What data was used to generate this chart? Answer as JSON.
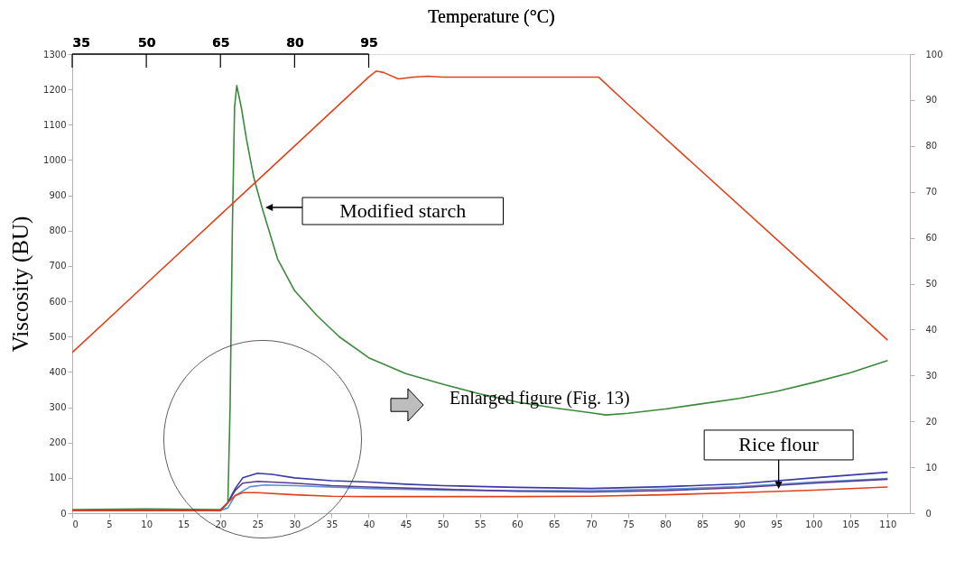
{
  "chart_data": {
    "type": "line",
    "ylabel": "Viscosity (BU)",
    "x2label": "Temperature (°C)",
    "xlim": [
      0,
      113
    ],
    "xticks": [
      0,
      5,
      10,
      15,
      20,
      25,
      30,
      35,
      40,
      45,
      50,
      55,
      60,
      65,
      70,
      75,
      80,
      85,
      90,
      95,
      100,
      105,
      110
    ],
    "ylim": [
      0,
      1300
    ],
    "yticks": [
      0,
      100,
      200,
      300,
      400,
      500,
      600,
      700,
      800,
      900,
      1000,
      1100,
      1200,
      1300
    ],
    "y2lim": [
      0,
      100
    ],
    "y2ticks": [
      0,
      10,
      20,
      30,
      40,
      50,
      60,
      70,
      80,
      90,
      100
    ],
    "x2lim": [
      35,
      204.5
    ],
    "x2ticks": [
      35,
      50,
      65,
      80,
      95
    ],
    "grid": false,
    "series": [
      {
        "color": "#e0421c",
        "axis": "y2",
        "x": [
          0,
          10,
          20,
          30,
          40,
          41,
          42,
          44,
          46,
          48,
          50,
          71,
          75,
          110
        ],
        "values": [
          35,
          50,
          65,
          80,
          95,
          96.3,
          96,
          94.6,
          95,
          95.2,
          95,
          95,
          89,
          37.7
        ]
      },
      {
        "color": "#3b8a3b",
        "x": [
          0,
          10,
          20,
          21,
          21.3,
          21.6,
          21.9,
          22.2,
          22.8,
          23.5,
          24.5,
          25.6,
          27.7,
          30,
          33,
          36,
          40,
          45,
          50,
          55,
          60,
          65,
          70,
          72,
          75,
          80,
          85,
          90,
          95,
          100,
          105,
          110
        ],
        "values": [
          10,
          12,
          10,
          30,
          300,
          800,
          1150,
          1211,
          1150,
          1060,
          950,
          866,
          720,
          630,
          560,
          500,
          440,
          395,
          365,
          338,
          315,
          298,
          284,
          278,
          283,
          295,
          310,
          325,
          345,
          370,
          398,
          432
        ]
      },
      {
        "color": "#5b8fd6",
        "x": [
          0,
          20,
          21,
          22,
          24,
          26,
          30,
          40,
          50,
          60,
          70,
          80,
          90,
          100,
          110
        ],
        "values": [
          8,
          8,
          15,
          50,
          75,
          80,
          78,
          70,
          65,
          64,
          64,
          68,
          75,
          88,
          98
        ]
      },
      {
        "color": "#5a3a8c",
        "x": [
          0,
          20,
          21,
          22,
          23,
          25,
          30,
          35,
          40,
          50,
          60,
          70,
          80,
          90,
          100,
          110
        ],
        "values": [
          8,
          8,
          30,
          65,
          85,
          90,
          85,
          78,
          74,
          68,
          62,
          60,
          64,
          72,
          85,
          96
        ]
      },
      {
        "color": "#3a3aa6",
        "x": [
          0,
          20,
          21,
          22,
          23,
          25,
          27,
          30,
          35,
          40,
          45,
          50,
          60,
          70,
          80,
          90,
          100,
          110
        ],
        "values": [
          8,
          8,
          30,
          70,
          100,
          113,
          110,
          100,
          92,
          88,
          82,
          78,
          73,
          70,
          75,
          83,
          100,
          116
        ]
      },
      {
        "color": "#e0421c",
        "x": [
          0,
          20,
          21,
          22,
          23,
          25,
          30,
          35,
          40,
          60,
          70,
          80,
          90,
          100,
          110
        ],
        "values": [
          8,
          8,
          30,
          50,
          58,
          58,
          52,
          48,
          47,
          47,
          48,
          52,
          58,
          65,
          74
        ]
      }
    ],
    "annotations": [
      "Modified starch",
      {
        "text": "Rice flour",
        "x": 95.3,
        "y": 64
      },
      "Enlarged  figure (Fig. 13)"
    ]
  }
}
